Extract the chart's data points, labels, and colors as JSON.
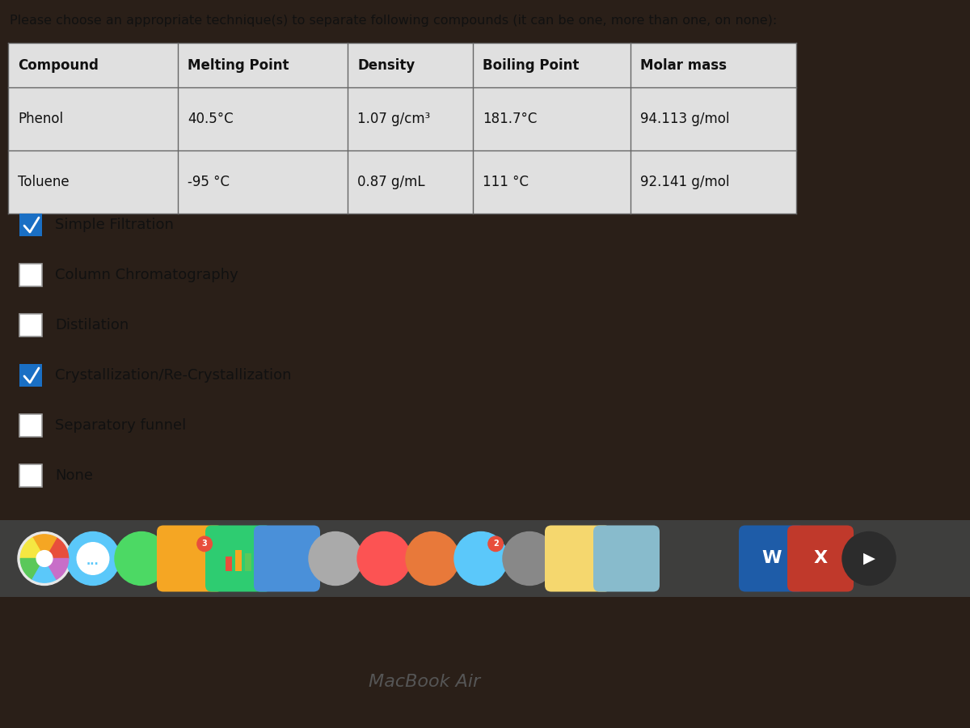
{
  "title": "Please choose an appropriate technique(s) to separate following compounds (it can be one, more than one, on none):",
  "table_headers": [
    "Compound",
    "Melting Point",
    "Density",
    "Boiling Point",
    "Molar mass"
  ],
  "table_rows": [
    [
      "Phenol",
      "40.5°C",
      "1.07 g/cm³",
      "181.7°C",
      "94.113 g/mol"
    ],
    [
      "Toluene",
      "-95 °C",
      "0.87 g/mL",
      "111 °C",
      "92.141 g/mol"
    ]
  ],
  "options": [
    {
      "label": "Simple Filtration",
      "checked": true
    },
    {
      "label": "Column Chromatography",
      "checked": false
    },
    {
      "label": "Distilation",
      "checked": false
    },
    {
      "label": "Crystallization/Re-Crystallization",
      "checked": true
    },
    {
      "label": "Separatory funnel",
      "checked": false
    },
    {
      "label": "None",
      "checked": false
    }
  ],
  "screen_bg": "#d9d9d9",
  "table_bg": "#e0e0e0",
  "header_bg": "#c8c8c8",
  "checkbox_checked_color": "#1a6fc4",
  "text_color": "#111111",
  "title_fontsize": 11.5,
  "table_fontsize": 12,
  "option_fontsize": 13,
  "dock_color": "#404040",
  "macbook_text": "MacBook Air",
  "bottom_bg": "#5a4a3a"
}
